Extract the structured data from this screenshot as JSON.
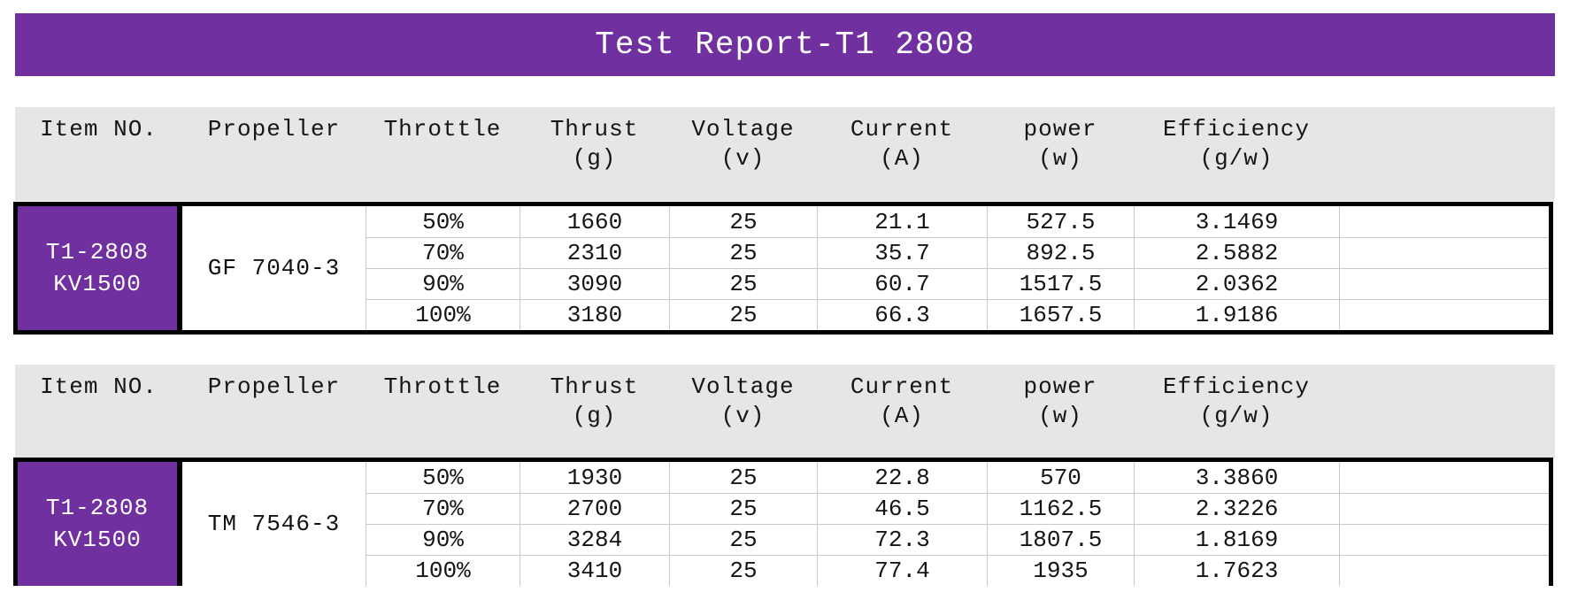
{
  "title": "Test Report-T1 2808",
  "colors": {
    "banner_purple": "#7030A0",
    "header_gray": "#E7E6E6",
    "grid_line": "#C9C9C9",
    "border_black": "#000000",
    "item_cell_text": "#FFFFFF"
  },
  "columns": [
    {
      "label": "Item NO.",
      "sub": ""
    },
    {
      "label": "Propeller",
      "sub": ""
    },
    {
      "label": "Throttle",
      "sub": ""
    },
    {
      "label": "Thrust",
      "sub": "(g)"
    },
    {
      "label": "Voltage",
      "sub": "(v)"
    },
    {
      "label": "Current",
      "sub": "(A)"
    },
    {
      "label": "power",
      "sub": "(w)"
    },
    {
      "label": "Efficiency",
      "sub": "(g/w)"
    }
  ],
  "tables": [
    {
      "item_no_line1": "T1-2808",
      "item_no_line2": "KV1500",
      "propeller": "GF 7040-3",
      "rows": [
        {
          "throttle": "50%",
          "thrust": "1660",
          "voltage": "25",
          "current": "21.1",
          "power": "527.5",
          "efficiency": "3.1469"
        },
        {
          "throttle": "70%",
          "thrust": "2310",
          "voltage": "25",
          "current": "35.7",
          "power": "892.5",
          "efficiency": "2.5882"
        },
        {
          "throttle": "90%",
          "thrust": "3090",
          "voltage": "25",
          "current": "60.7",
          "power": "1517.5",
          "efficiency": "2.0362"
        },
        {
          "throttle": "100%",
          "thrust": "3180",
          "voltage": "25",
          "current": "66.3",
          "power": "1657.5",
          "efficiency": "1.9186"
        }
      ]
    },
    {
      "item_no_line1": "T1-2808",
      "item_no_line2": "KV1500",
      "propeller": "TM 7546-3",
      "rows": [
        {
          "throttle": "50%",
          "thrust": "1930",
          "voltage": "25",
          "current": "22.8",
          "power": "570",
          "efficiency": "3.3860"
        },
        {
          "throttle": "70%",
          "thrust": "2700",
          "voltage": "25",
          "current": "46.5",
          "power": "1162.5",
          "efficiency": "2.3226"
        },
        {
          "throttle": "90%",
          "thrust": "3284",
          "voltage": "25",
          "current": "72.3",
          "power": "1807.5",
          "efficiency": "1.8169"
        },
        {
          "throttle": "100%",
          "thrust": "3410",
          "voltage": "25",
          "current": "77.4",
          "power": "1935",
          "efficiency": "1.7623"
        }
      ]
    }
  ]
}
